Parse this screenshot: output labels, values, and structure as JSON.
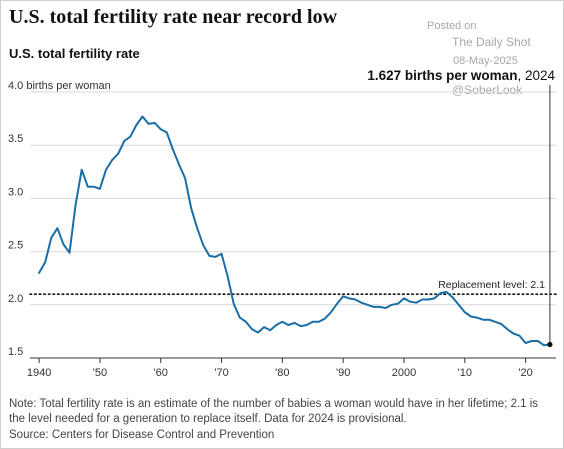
{
  "title": "U.S. total fertility rate near record low",
  "watermark": {
    "line1": "Posted on",
    "line2": "The Daily Shot",
    "line3": "08-May-2025",
    "line4": "@SoberLook"
  },
  "footer": {
    "note": "Note: Total fertility rate is an estimate of the number of babies a woman would have in her lifetime; 2.1 is the level needed for a generation to replace itself. Data for 2024 is provisional.",
    "source": "Source: Centers for Disease Control and Prevention"
  },
  "colors": {
    "line": "#1a6ea6",
    "reference": "#111111",
    "grid": "#d9d9d9",
    "axis": "#333333"
  },
  "chart_data": {
    "type": "line",
    "title": "U.S. total fertility rate",
    "ylabel_top": "4.0 births per woman",
    "ylim": [
      1.5,
      4.0
    ],
    "xlim": [
      1938.5,
      2025
    ],
    "y_ticks": [
      1.5,
      2.0,
      2.5,
      3.0,
      3.5
    ],
    "y_tick_labels": [
      "1.5",
      "2.0",
      "2.5",
      "3.0",
      "3.5"
    ],
    "x_ticks": [
      1940,
      1950,
      1960,
      1970,
      1980,
      1990,
      2000,
      2010,
      2020
    ],
    "x_tick_labels": [
      "1940",
      "'50",
      "'60",
      "'70",
      "'80",
      "'90",
      "2000",
      "'10",
      "'20"
    ],
    "grid": "horizontal",
    "reference_line": {
      "y": 2.1,
      "label": "Replacement level: 2.1"
    },
    "annotation": {
      "bold": "1.627 births per woman",
      "rest": ", 2024",
      "x": 2024,
      "y": 1.627
    },
    "series": [
      {
        "x": [
          1940,
          1941,
          1942,
          1943,
          1944,
          1945,
          1946,
          1947,
          1948,
          1949,
          1950,
          1951,
          1952,
          1953,
          1954,
          1955,
          1956,
          1957,
          1958,
          1959,
          1960,
          1961,
          1962,
          1963,
          1964,
          1965,
          1966,
          1967,
          1968,
          1969,
          1970,
          1971,
          1972,
          1973,
          1974,
          1975,
          1976,
          1977,
          1978,
          1979,
          1980,
          1981,
          1982,
          1983,
          1984,
          1985,
          1986,
          1987,
          1988,
          1989,
          1990,
          1991,
          1992,
          1993,
          1994,
          1995,
          1996,
          1997,
          1998,
          1999,
          2000,
          2001,
          2002,
          2003,
          2004,
          2005,
          2006,
          2007,
          2008,
          2009,
          2010,
          2011,
          2012,
          2013,
          2014,
          2015,
          2016,
          2017,
          2018,
          2019,
          2020,
          2021,
          2022,
          2023,
          2024
        ],
        "y": [
          2.3,
          2.4,
          2.63,
          2.72,
          2.57,
          2.49,
          2.94,
          3.27,
          3.11,
          3.11,
          3.09,
          3.27,
          3.36,
          3.42,
          3.54,
          3.58,
          3.69,
          3.77,
          3.7,
          3.71,
          3.65,
          3.62,
          3.46,
          3.32,
          3.19,
          2.91,
          2.72,
          2.56,
          2.46,
          2.45,
          2.48,
          2.27,
          2.01,
          1.88,
          1.84,
          1.77,
          1.74,
          1.79,
          1.76,
          1.81,
          1.84,
          1.81,
          1.83,
          1.8,
          1.81,
          1.84,
          1.84,
          1.87,
          1.93,
          2.01,
          2.08,
          2.06,
          2.05,
          2.02,
          2.0,
          1.98,
          1.98,
          1.97,
          2.0,
          2.01,
          2.06,
          2.03,
          2.02,
          2.05,
          2.05,
          2.06,
          2.11,
          2.12,
          2.07,
          2.0,
          1.93,
          1.89,
          1.88,
          1.86,
          1.86,
          1.84,
          1.82,
          1.77,
          1.73,
          1.71,
          1.64,
          1.66,
          1.66,
          1.62,
          1.627
        ]
      }
    ]
  }
}
